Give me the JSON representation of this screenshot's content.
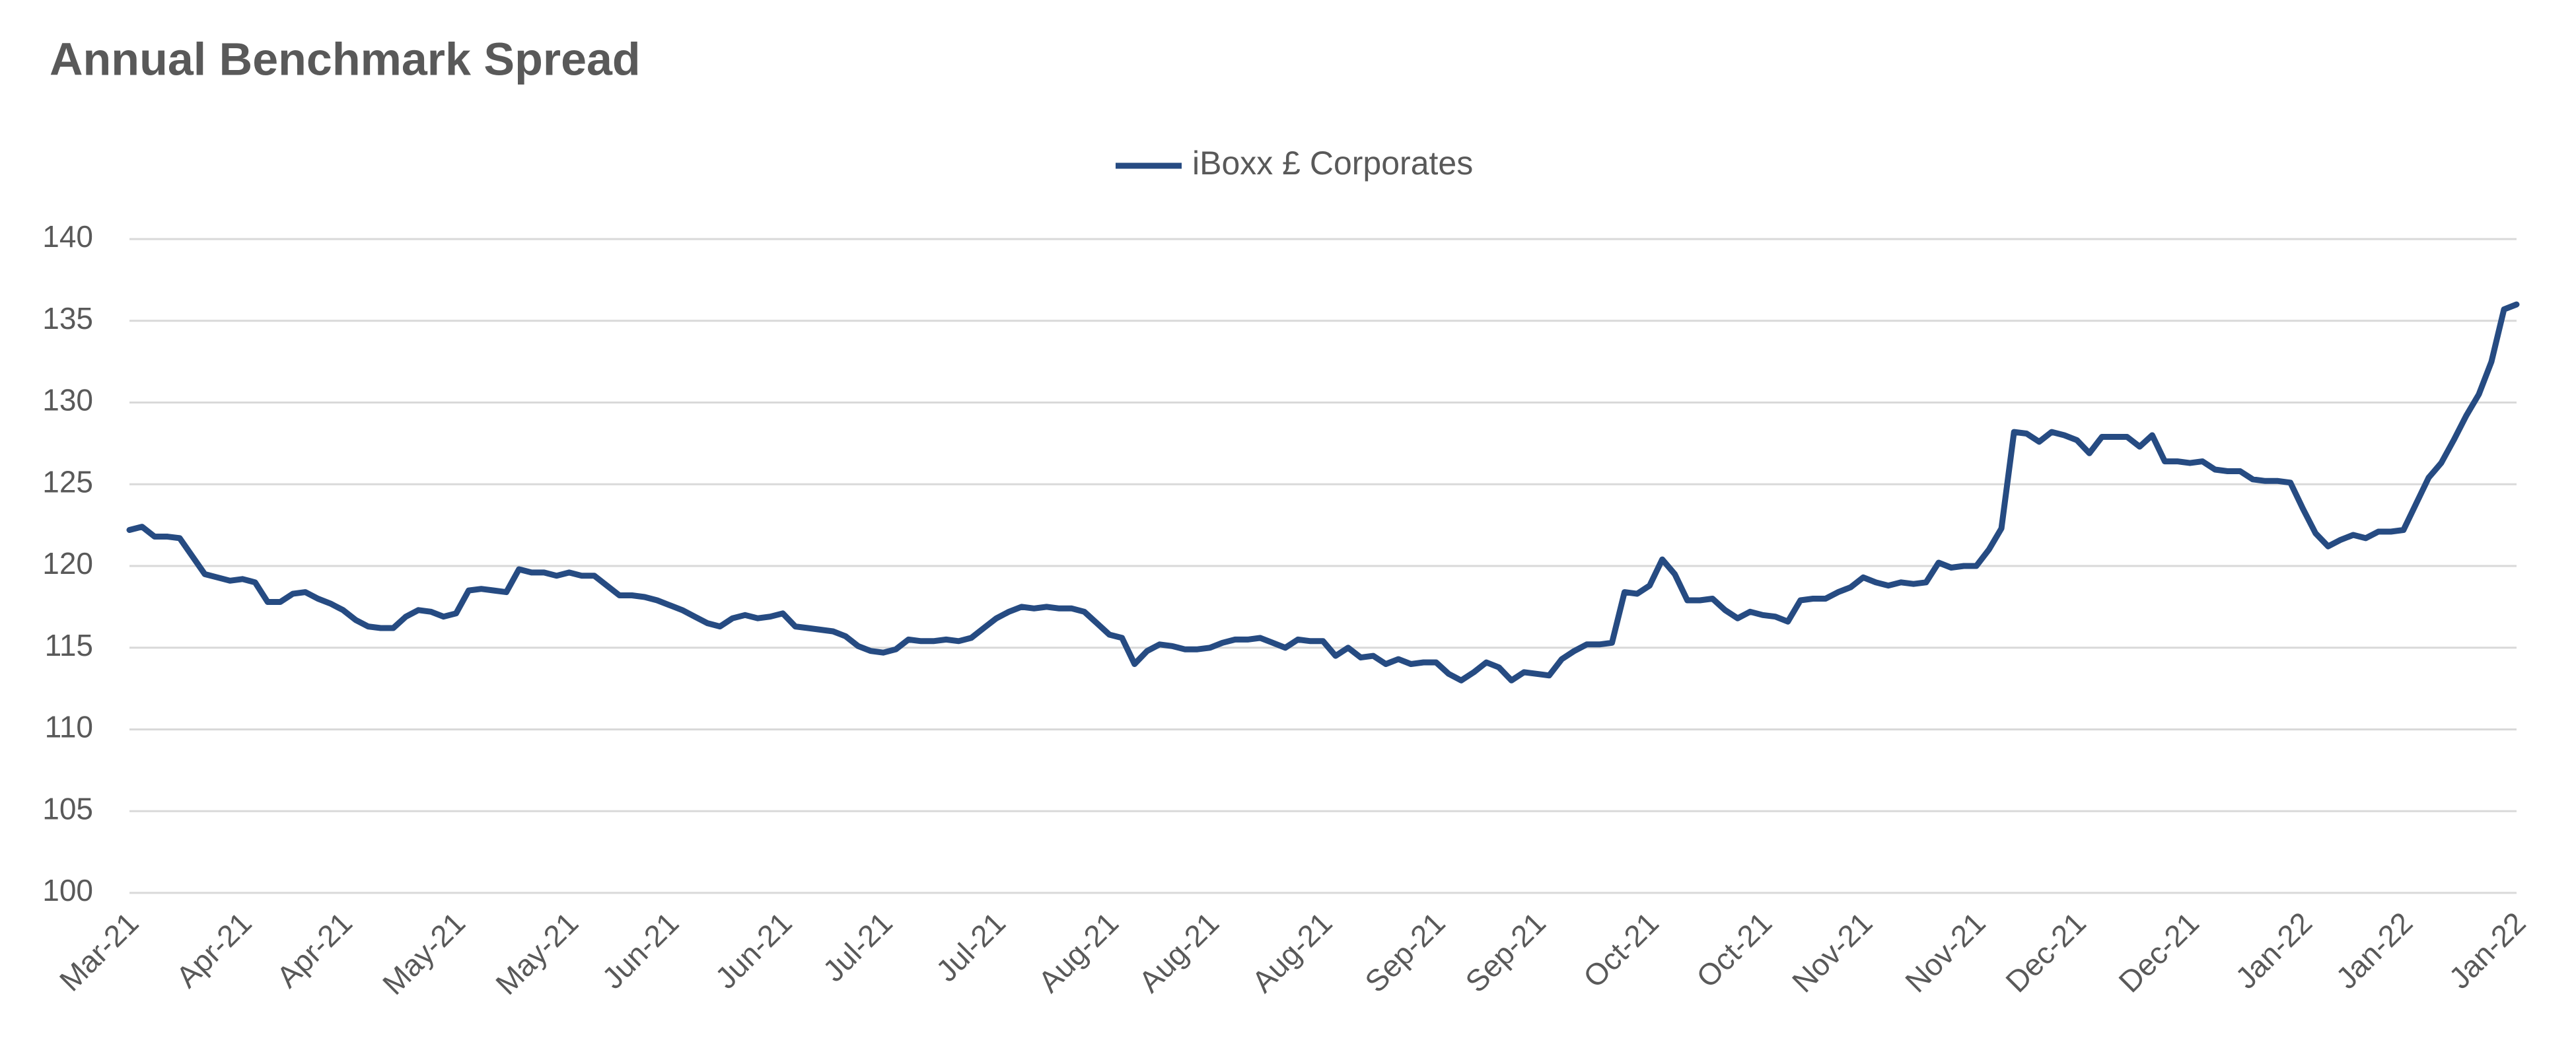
{
  "chart_data": {
    "type": "line",
    "title": "Annual Benchmark Spread",
    "categories": [
      "Mar-21",
      null,
      null,
      null,
      null,
      null,
      null,
      null,
      null,
      "Apr-21",
      null,
      null,
      null,
      null,
      null,
      null,
      null,
      "Apr-21",
      null,
      null,
      null,
      null,
      null,
      null,
      null,
      null,
      "May-21",
      null,
      null,
      null,
      null,
      null,
      null,
      null,
      null,
      "May-21",
      null,
      null,
      null,
      null,
      null,
      null,
      null,
      "Jun-21",
      null,
      null,
      null,
      null,
      null,
      null,
      null,
      null,
      "Jun-21",
      null,
      null,
      null,
      null,
      null,
      null,
      null,
      "Jul-21",
      null,
      null,
      null,
      null,
      null,
      null,
      null,
      null,
      "Jul-21",
      null,
      null,
      null,
      null,
      null,
      null,
      null,
      null,
      "Aug-21",
      null,
      null,
      null,
      null,
      null,
      null,
      null,
      "Aug-21",
      null,
      null,
      null,
      null,
      null,
      null,
      null,
      null,
      "Aug-21",
      null,
      null,
      null,
      null,
      null,
      null,
      null,
      null,
      "Sep-21",
      null,
      null,
      null,
      null,
      null,
      null,
      null,
      "Sep-21",
      null,
      null,
      null,
      null,
      null,
      null,
      null,
      null,
      "Oct-21",
      null,
      null,
      null,
      null,
      null,
      null,
      null,
      null,
      "Oct-21",
      null,
      null,
      null,
      null,
      null,
      null,
      null,
      "Nov-21",
      null,
      null,
      null,
      null,
      null,
      null,
      null,
      null,
      "Nov-21",
      null,
      null,
      null,
      null,
      null,
      null,
      null,
      "Dec-21",
      null,
      null,
      null,
      null,
      null,
      null,
      null,
      null,
      "Dec-21",
      null,
      null,
      null,
      null,
      null,
      null,
      null,
      null,
      "Jan-22",
      null,
      null,
      null,
      null,
      null,
      null,
      null,
      "Jan-22",
      null,
      null,
      null,
      null,
      null,
      null,
      null,
      null,
      "Jan-22"
    ],
    "series": [
      {
        "name": "iBoxx £ Corporates",
        "color": "#264b82",
        "values": [
          122.2,
          122.4,
          121.8,
          121.8,
          121.7,
          120.6,
          119.5,
          119.3,
          119.1,
          119.2,
          119.0,
          117.8,
          117.8,
          118.3,
          118.4,
          118.0,
          117.7,
          117.3,
          116.7,
          116.3,
          116.2,
          116.2,
          116.9,
          117.3,
          117.2,
          116.9,
          117.1,
          118.5,
          118.6,
          118.5,
          118.4,
          119.8,
          119.6,
          119.6,
          119.4,
          119.6,
          119.4,
          119.4,
          118.8,
          118.2,
          118.2,
          118.1,
          117.9,
          117.6,
          117.3,
          116.9,
          116.5,
          116.3,
          116.8,
          117.0,
          116.8,
          116.9,
          117.1,
          116.3,
          116.2,
          116.1,
          116.0,
          115.7,
          115.1,
          114.8,
          114.7,
          114.9,
          115.5,
          115.4,
          115.4,
          115.5,
          115.4,
          115.6,
          116.2,
          116.8,
          117.2,
          117.5,
          117.4,
          117.5,
          117.4,
          117.4,
          117.2,
          116.5,
          115.8,
          115.6,
          114.0,
          114.8,
          115.2,
          115.1,
          114.9,
          114.9,
          115.0,
          115.3,
          115.5,
          115.5,
          115.6,
          115.3,
          115.0,
          115.5,
          115.4,
          115.4,
          114.5,
          115.0,
          114.4,
          114.5,
          114.0,
          114.3,
          114.0,
          114.1,
          114.1,
          113.4,
          113.0,
          113.5,
          114.1,
          113.8,
          113.0,
          113.5,
          113.4,
          113.3,
          114.3,
          114.8,
          115.2,
          115.2,
          115.3,
          118.4,
          118.3,
          118.8,
          120.4,
          119.5,
          117.9,
          117.9,
          118.0,
          117.3,
          116.8,
          117.2,
          117.0,
          116.9,
          116.6,
          117.9,
          118.0,
          118.0,
          118.4,
          118.7,
          119.3,
          119.0,
          118.8,
          119.0,
          118.9,
          119.0,
          120.2,
          119.9,
          120.0,
          120.0,
          121.0,
          122.3,
          128.2,
          128.1,
          127.6,
          128.2,
          128.0,
          127.7,
          126.9,
          127.9,
          127.9,
          127.9,
          127.3,
          128.0,
          126.4,
          126.4,
          126.3,
          126.4,
          125.9,
          125.8,
          125.8,
          125.3,
          125.2,
          125.2,
          125.1,
          123.5,
          122.0,
          121.2,
          121.6,
          121.9,
          121.7,
          122.1,
          122.1,
          122.2,
          123.8,
          125.4,
          126.3,
          127.7,
          129.2,
          130.5,
          132.5,
          135.7,
          136.0
        ]
      }
    ],
    "ylim": [
      100,
      140
    ],
    "yticks": [
      100,
      105,
      110,
      115,
      120,
      125,
      130,
      135,
      140
    ],
    "grid": true,
    "legend": "top"
  }
}
